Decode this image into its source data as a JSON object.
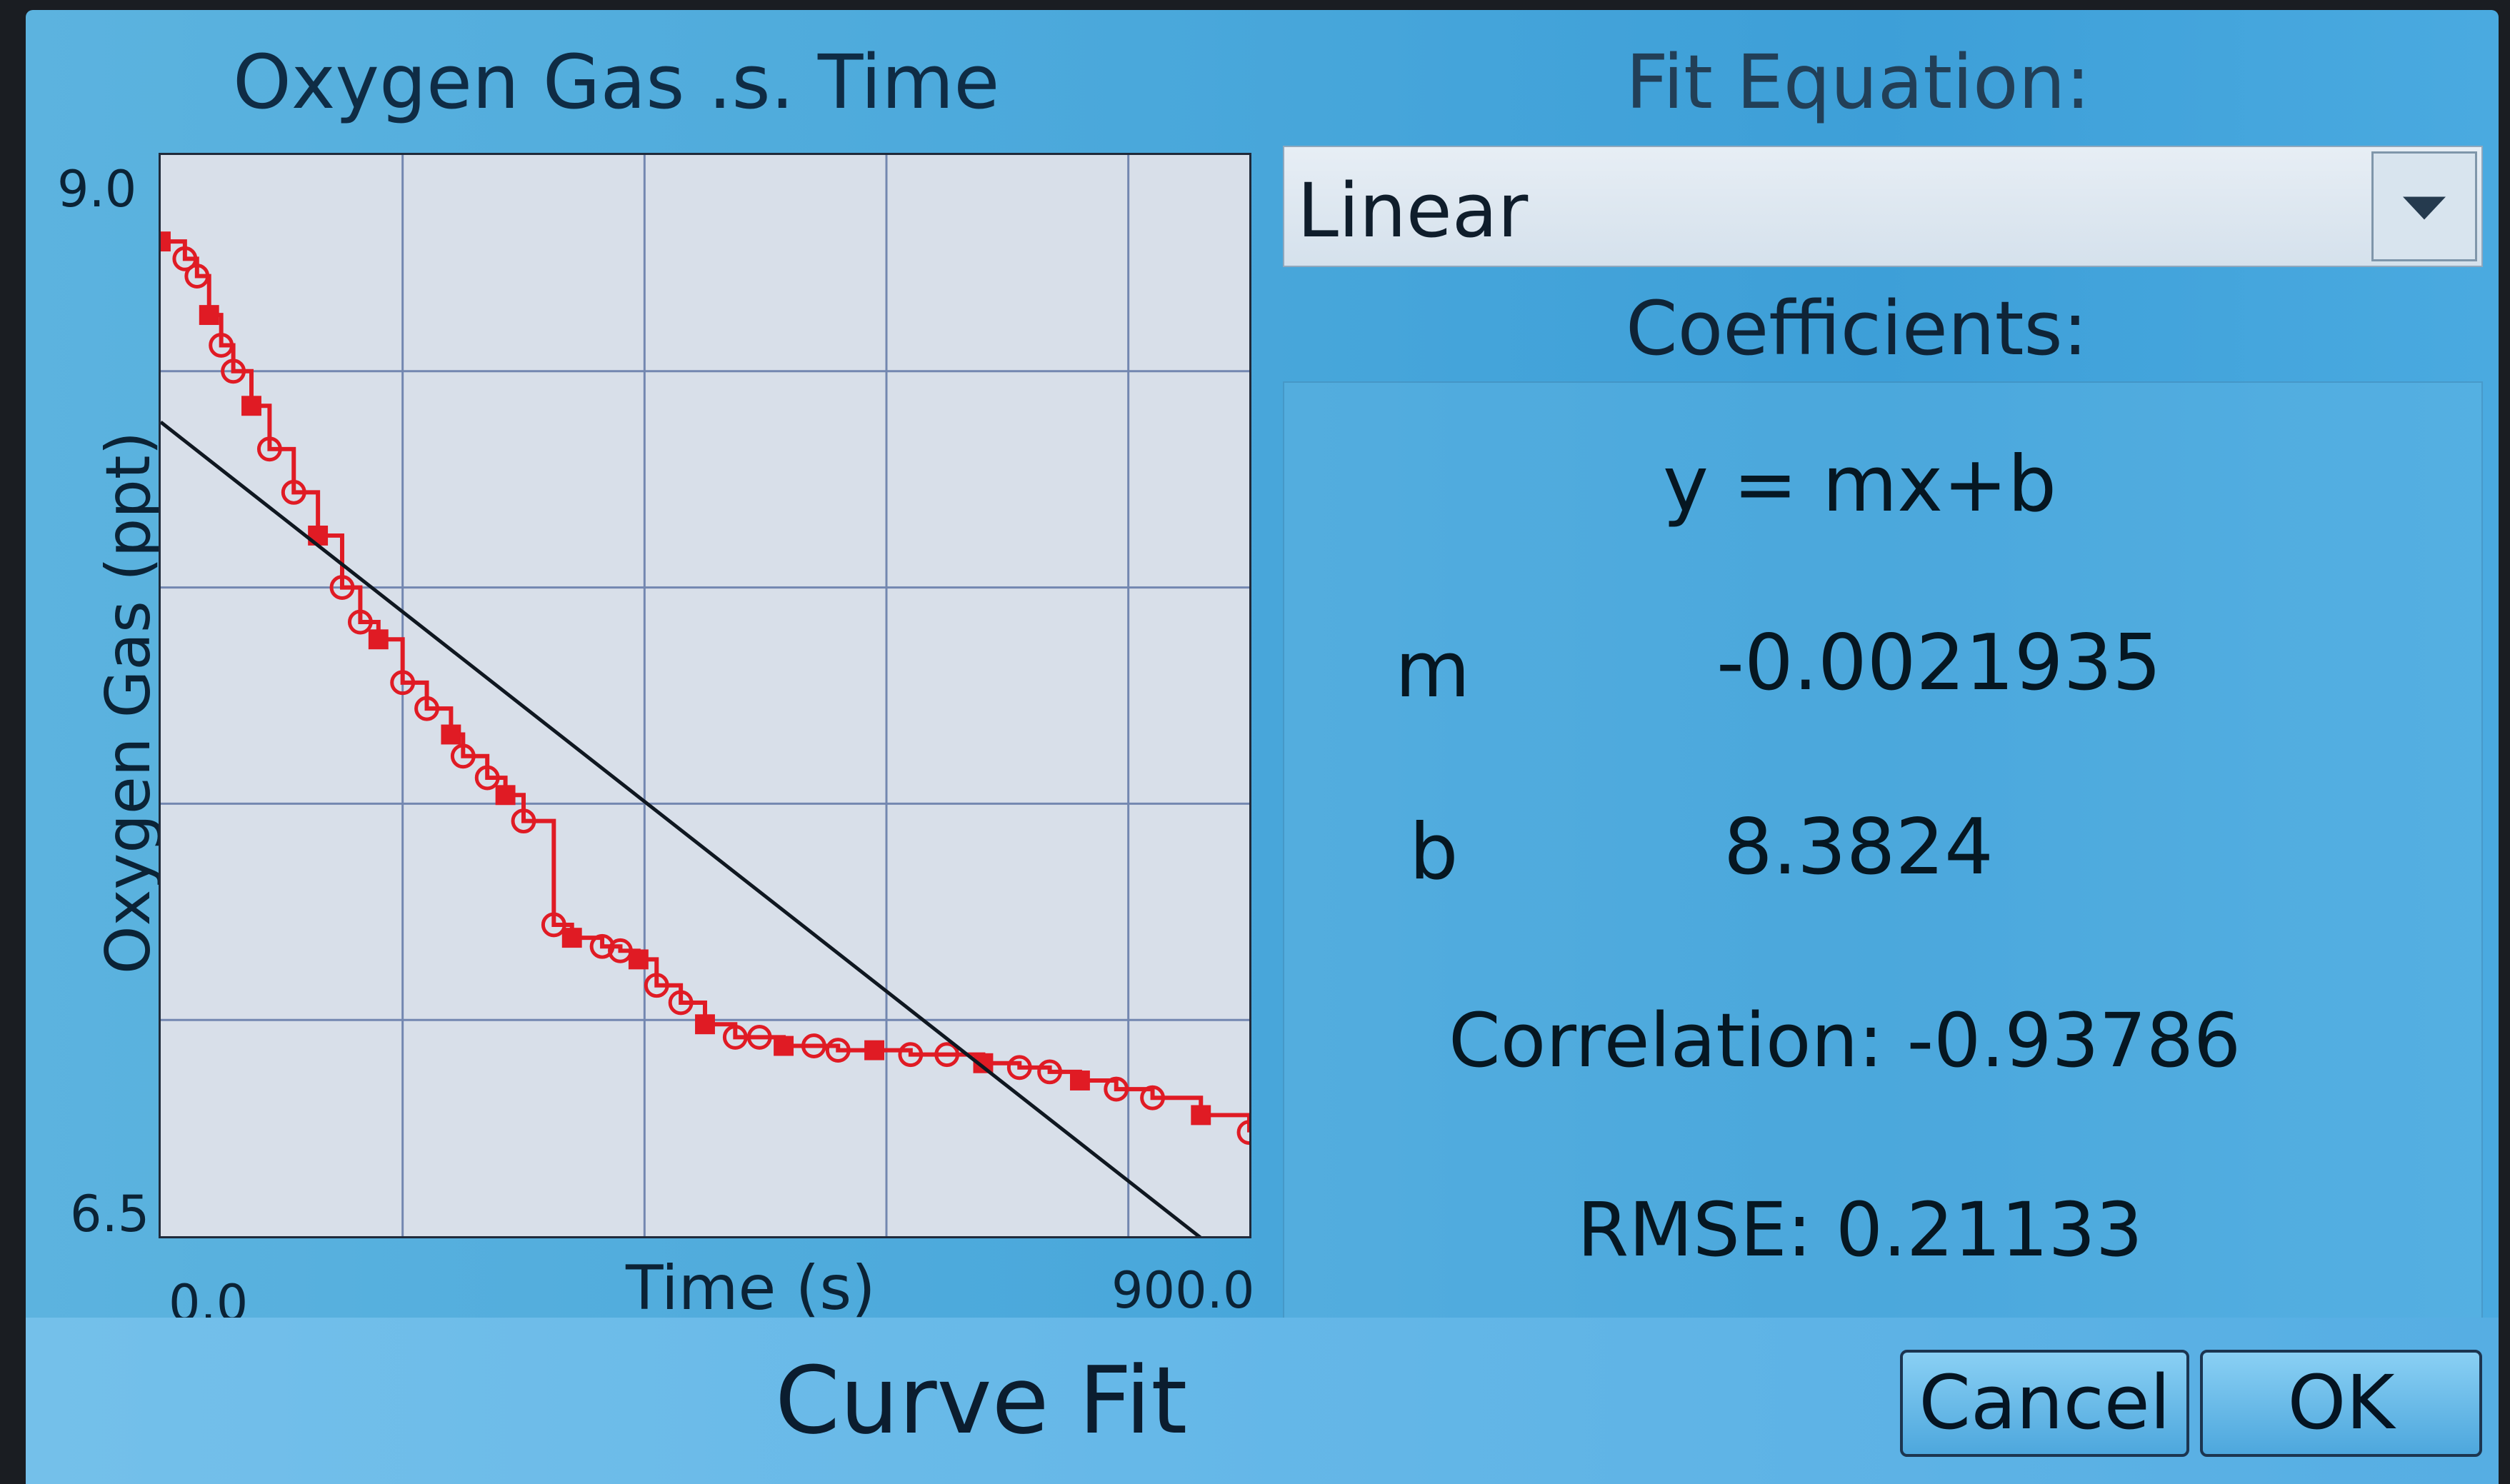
{
  "header": {
    "plot_title": "Oxygen Gas .s. Time",
    "fit_title": "Fit Equation:"
  },
  "axes": {
    "y_label": "Oxygen Gas (ppt)",
    "x_label": "Time (s)",
    "y_max_label": "9.0",
    "y_min_label": "6.5",
    "x_min_label": "0.0",
    "x_max_label": "900.0"
  },
  "fit_equation": {
    "selected": "Linear"
  },
  "coefficients": {
    "title": "Coefficients:",
    "equation": "y = mx+b",
    "m_label": "m",
    "m_value": "-0.0021935",
    "b_label": "b",
    "b_value": "8.3824",
    "correlation_text": "Correlation: -0.93786",
    "rmse_text": "RMSE: 0.21133"
  },
  "footer": {
    "title": "Curve Fit",
    "cancel_label": "Cancel",
    "ok_label": "OK"
  },
  "colors": {
    "data": "#e01b24",
    "fit": "#0f1720",
    "grid": "#7387b0"
  },
  "chart_data": {
    "type": "scatter",
    "xlabel": "Time (s)",
    "ylabel": "Oxygen Gas (ppt)",
    "xlim": [
      0,
      900
    ],
    "ylim": [
      6.5,
      9.0
    ],
    "grid": true,
    "series": [
      {
        "x": [
          0,
          20,
          30,
          40,
          50,
          60,
          75,
          90,
          110,
          130,
          150,
          165,
          180,
          200,
          220,
          240,
          250,
          270,
          285,
          300,
          325,
          340,
          365,
          380,
          395,
          410,
          430,
          450,
          475,
          495,
          515,
          540,
          560,
          590,
          620,
          650,
          680,
          710,
          735,
          760,
          790,
          820,
          860,
          900
        ],
        "values": [
          8.8,
          8.76,
          8.72,
          8.63,
          8.56,
          8.5,
          8.42,
          8.32,
          8.22,
          8.12,
          8.0,
          7.92,
          7.88,
          7.78,
          7.72,
          7.66,
          7.61,
          7.56,
          7.52,
          7.46,
          7.22,
          7.19,
          7.17,
          7.16,
          7.14,
          7.08,
          7.04,
          6.99,
          6.96,
          6.96,
          6.94,
          6.94,
          6.93,
          6.93,
          6.92,
          6.92,
          6.9,
          6.89,
          6.88,
          6.86,
          6.84,
          6.82,
          6.78,
          6.74
        ]
      },
      {
        "x": [
          0,
          900
        ],
        "values": [
          8.3824,
          6.4083
        ]
      }
    ]
  }
}
